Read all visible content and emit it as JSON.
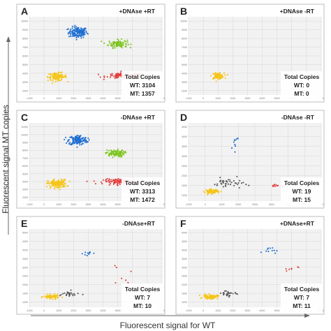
{
  "figure": {
    "ylabel": "Fluorescent signal MT copies",
    "xlabel": "Fluorescent signal for WT"
  },
  "colors": {
    "FAM_MT": "#1f6fd1",
    "HEX_WT": "#7bc41a",
    "negative": "#f5c518",
    "WT_only": "#e23b3b",
    "rain": "#555555",
    "panel_bg": "#f2f2f2",
    "grid": "#d6d6d6",
    "frame": "#bdbdbd"
  },
  "chart_data": [
    {
      "type": "scatter",
      "panel_label": "A",
      "condition": "+DNAse +RT",
      "summary_title": "Total Copies",
      "wt_text": "WT: 3104",
      "mt_text": "MT: 1357",
      "wt_copies": 3104,
      "mt_copies": 1357,
      "y_ticks": [
        "10000",
        "9000",
        "8000",
        "7000",
        "6000",
        "5000",
        "4000",
        "3000",
        "2000"
      ],
      "x_ticks": [
        "-1000",
        "0",
        "1000",
        "2000",
        "3000",
        "4000",
        "5000",
        "6000",
        "7000",
        "8000"
      ],
      "xlim": [
        -1000,
        8000
      ],
      "ylim": [
        1500,
        10500
      ],
      "clusters": [
        {
          "kind": "FAM_MT",
          "center": [
            2300,
            8700
          ],
          "spread": [
            700,
            700
          ],
          "n": 150
        },
        {
          "kind": "HEX_WT",
          "center": [
            5000,
            7400
          ],
          "spread": [
            700,
            500
          ],
          "n": 95
        },
        {
          "kind": "negative",
          "center": [
            900,
            3600
          ],
          "spread": [
            700,
            500
          ],
          "n": 115
        },
        {
          "kind": "WT_only",
          "center": [
            5500,
            3700
          ],
          "spread": [
            1400,
            350
          ],
          "n": 130
        }
      ]
    },
    {
      "type": "scatter",
      "panel_label": "B",
      "condition": "+DNAse -RT",
      "summary_title": "Total Copies",
      "wt_text": "WT: 0",
      "mt_text": "MT: 0",
      "wt_copies": 0,
      "mt_copies": 0,
      "y_ticks": [
        "10000",
        "9000",
        "8000",
        "7000",
        "6000",
        "5000",
        "4000",
        "3000",
        "2000"
      ],
      "x_ticks": [
        "-1000",
        "0",
        "1000",
        "2000",
        "3000",
        "4000",
        "5000",
        "6000",
        "7000",
        "8000"
      ],
      "xlim": [
        -1000,
        8000
      ],
      "ylim": [
        1500,
        10500
      ],
      "clusters": [
        {
          "kind": "negative",
          "center": [
            1000,
            3700
          ],
          "spread": [
            450,
            350
          ],
          "n": 90
        }
      ]
    },
    {
      "type": "scatter",
      "panel_label": "C",
      "condition": "-DNAse +RT",
      "summary_title": "Total Copies",
      "wt_text": "WT: 3313",
      "mt_text": "MT: 1472",
      "wt_copies": 3313,
      "mt_copies": 1472,
      "y_ticks": [
        "11000",
        "10000",
        "9000",
        "8000",
        "7000",
        "6000",
        "5000",
        "4000",
        "3000",
        "2000"
      ],
      "x_ticks": [
        "-1000",
        "0",
        "1000",
        "2000",
        "3000",
        "4000",
        "5000",
        "6000",
        "7000",
        "8000"
      ],
      "xlim": [
        -1000,
        8000
      ],
      "ylim": [
        1500,
        11500
      ],
      "clusters": [
        {
          "kind": "FAM_MT",
          "center": [
            2300,
            9300
          ],
          "spread": [
            700,
            700
          ],
          "n": 155
        },
        {
          "kind": "HEX_WT",
          "center": [
            4800,
            7600
          ],
          "spread": [
            700,
            500
          ],
          "n": 95
        },
        {
          "kind": "negative",
          "center": [
            900,
            3700
          ],
          "spread": [
            700,
            600
          ],
          "n": 150
        },
        {
          "kind": "WT_only",
          "center": [
            5300,
            4000
          ],
          "spread": [
            1400,
            350
          ],
          "n": 130
        }
      ]
    },
    {
      "type": "scatter",
      "panel_label": "D",
      "condition": "-DNAse -RT",
      "summary_title": "Total Copies",
      "wt_text": "WT: 19",
      "mt_text": "MT: 15",
      "wt_copies": 19,
      "mt_copies": 15,
      "y_ticks": [
        "4500",
        "4000",
        "3500",
        "3000",
        "2500",
        "2000",
        "1500",
        "1000"
      ],
      "x_ticks": [
        "-1000",
        "0",
        "1000",
        "2000",
        "3000",
        "4000",
        "5000",
        "6000",
        "7000"
      ],
      "xlim": [
        -1000,
        7000
      ],
      "ylim": [
        700,
        4700
      ],
      "clusters": [
        {
          "kind": "negative",
          "center": [
            400,
            1200
          ],
          "spread": [
            450,
            120
          ],
          "n": 75
        },
        {
          "kind": "rain",
          "center": [
            1400,
            1600
          ],
          "spread": [
            1000,
            300
          ],
          "n": 40
        },
        {
          "kind": "FAM_MT",
          "center": [
            1800,
            3700
          ],
          "spread": [
            350,
            450
          ],
          "n": 10
        },
        {
          "kind": "WT_only",
          "center": [
            4400,
            1500
          ],
          "spread": [
            700,
            120
          ],
          "n": 14
        }
      ]
    },
    {
      "type": "scatter",
      "panel_label": "E",
      "condition": "-DNAse+RT",
      "summary_title": "Total Copies",
      "wt_text": "WT: 7",
      "mt_text": "MT: 10",
      "wt_copies": 7,
      "mt_copies": 10,
      "y_ticks": [
        "5000",
        "4500",
        "4000",
        "3500",
        "3000",
        "2500",
        "2000",
        "1500",
        "1000"
      ],
      "x_ticks": [
        "-1000",
        "0",
        "1000",
        "2000",
        "3000",
        "4000",
        "5000",
        "6000",
        "7000",
        "8000"
      ],
      "xlim": [
        -1000,
        8000
      ],
      "ylim": [
        700,
        5200
      ],
      "clusters": [
        {
          "kind": "negative",
          "center": [
            500,
            1300
          ],
          "spread": [
            550,
            130
          ],
          "n": 80
        },
        {
          "kind": "rain",
          "center": [
            1700,
            1450
          ],
          "spread": [
            900,
            200
          ],
          "n": 25
        },
        {
          "kind": "FAM_MT",
          "center": [
            3000,
            3800
          ],
          "spread": [
            400,
            200
          ],
          "n": 10
        },
        {
          "kind": "WT_only",
          "center": [
            5200,
            2500
          ],
          "spread": [
            800,
            700
          ],
          "n": 7
        }
      ]
    },
    {
      "type": "scatter",
      "panel_label": "F",
      "condition": "+DNAse+RT",
      "summary_title": "Total Copies",
      "wt_text": "WT: 7",
      "mt_text": "MT: 11",
      "wt_copies": 7,
      "mt_copies": 11,
      "y_ticks": [
        "5000",
        "4500",
        "4000",
        "3500",
        "3000",
        "2500",
        "2000",
        "1500",
        "1000"
      ],
      "x_ticks": [
        "-1000",
        "0",
        "1000",
        "2000",
        "3000",
        "4000",
        "5000",
        "6000",
        "7000",
        "8000"
      ],
      "xlim": [
        -1000,
        8000
      ],
      "ylim": [
        700,
        5200
      ],
      "clusters": [
        {
          "kind": "negative",
          "center": [
            500,
            1300
          ],
          "spread": [
            550,
            130
          ],
          "n": 80
        },
        {
          "kind": "rain",
          "center": [
            1700,
            1500
          ],
          "spread": [
            900,
            200
          ],
          "n": 25
        },
        {
          "kind": "FAM_MT",
          "center": [
            4500,
            4000
          ],
          "spread": [
            500,
            200
          ],
          "n": 11
        },
        {
          "kind": "WT_only",
          "center": [
            5600,
            2800
          ],
          "spread": [
            900,
            400
          ],
          "n": 7
        }
      ]
    }
  ]
}
